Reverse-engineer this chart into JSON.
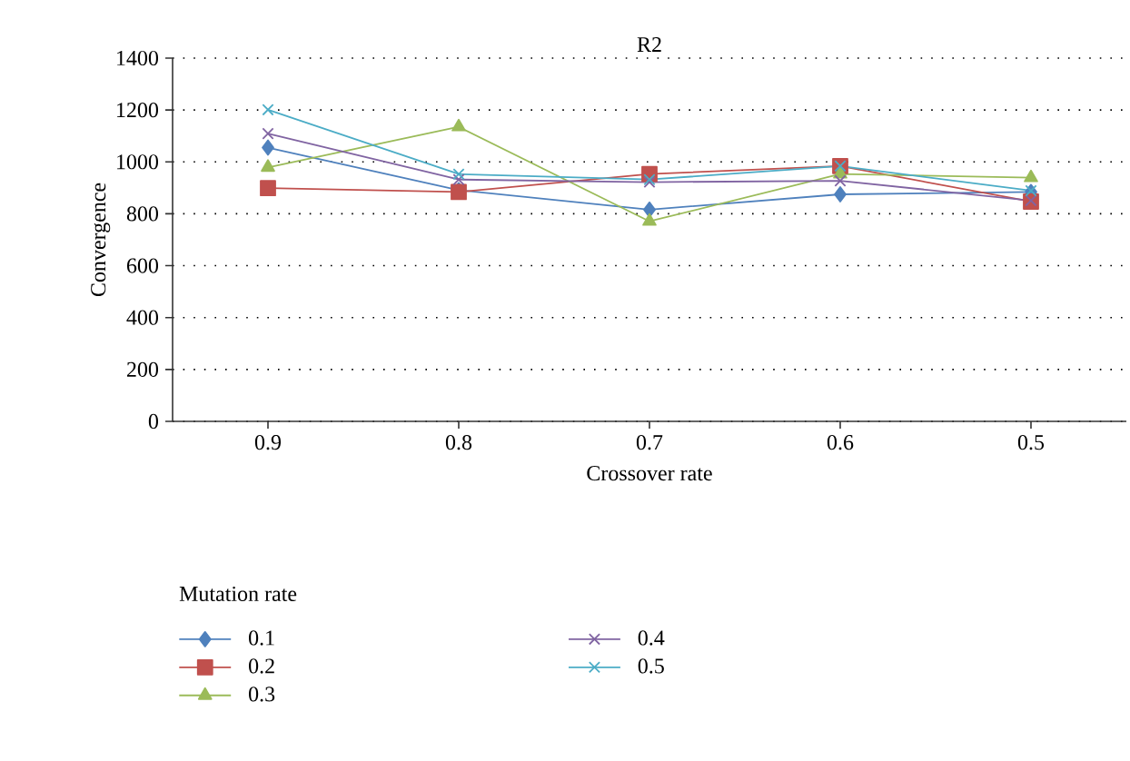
{
  "chart_data": {
    "type": "line",
    "title": "R2",
    "xlabel": "Crossover rate",
    "ylabel": "Convergence",
    "legend_title": "Mutation rate",
    "categories": [
      "0.9",
      "0.8",
      "0.7",
      "0.6",
      "0.5"
    ],
    "series": [
      {
        "name": "0.1",
        "color": "#4f81bd",
        "marker": "diamond",
        "values": [
          1055,
          891,
          816,
          875,
          884
        ]
      },
      {
        "name": "0.2",
        "color": "#c0504d",
        "marker": "square",
        "values": [
          899,
          884,
          953,
          984,
          847
        ]
      },
      {
        "name": "0.3",
        "color": "#9bbb59",
        "marker": "triangle",
        "values": [
          979,
          1135,
          771,
          953,
          939
        ]
      },
      {
        "name": "0.4",
        "color": "#8064a2",
        "marker": "cross",
        "values": [
          1109,
          932,
          922,
          927,
          851
        ]
      },
      {
        "name": "0.5",
        "color": "#4bacc6",
        "marker": "cross",
        "values": [
          1201,
          953,
          932,
          984,
          889
        ]
      }
    ],
    "ylim": [
      0,
      1400
    ],
    "yticks": [
      0,
      200,
      400,
      600,
      800,
      1000,
      1200,
      1400
    ],
    "grid": "y",
    "legend": "bottom",
    "line_style": "solid"
  }
}
